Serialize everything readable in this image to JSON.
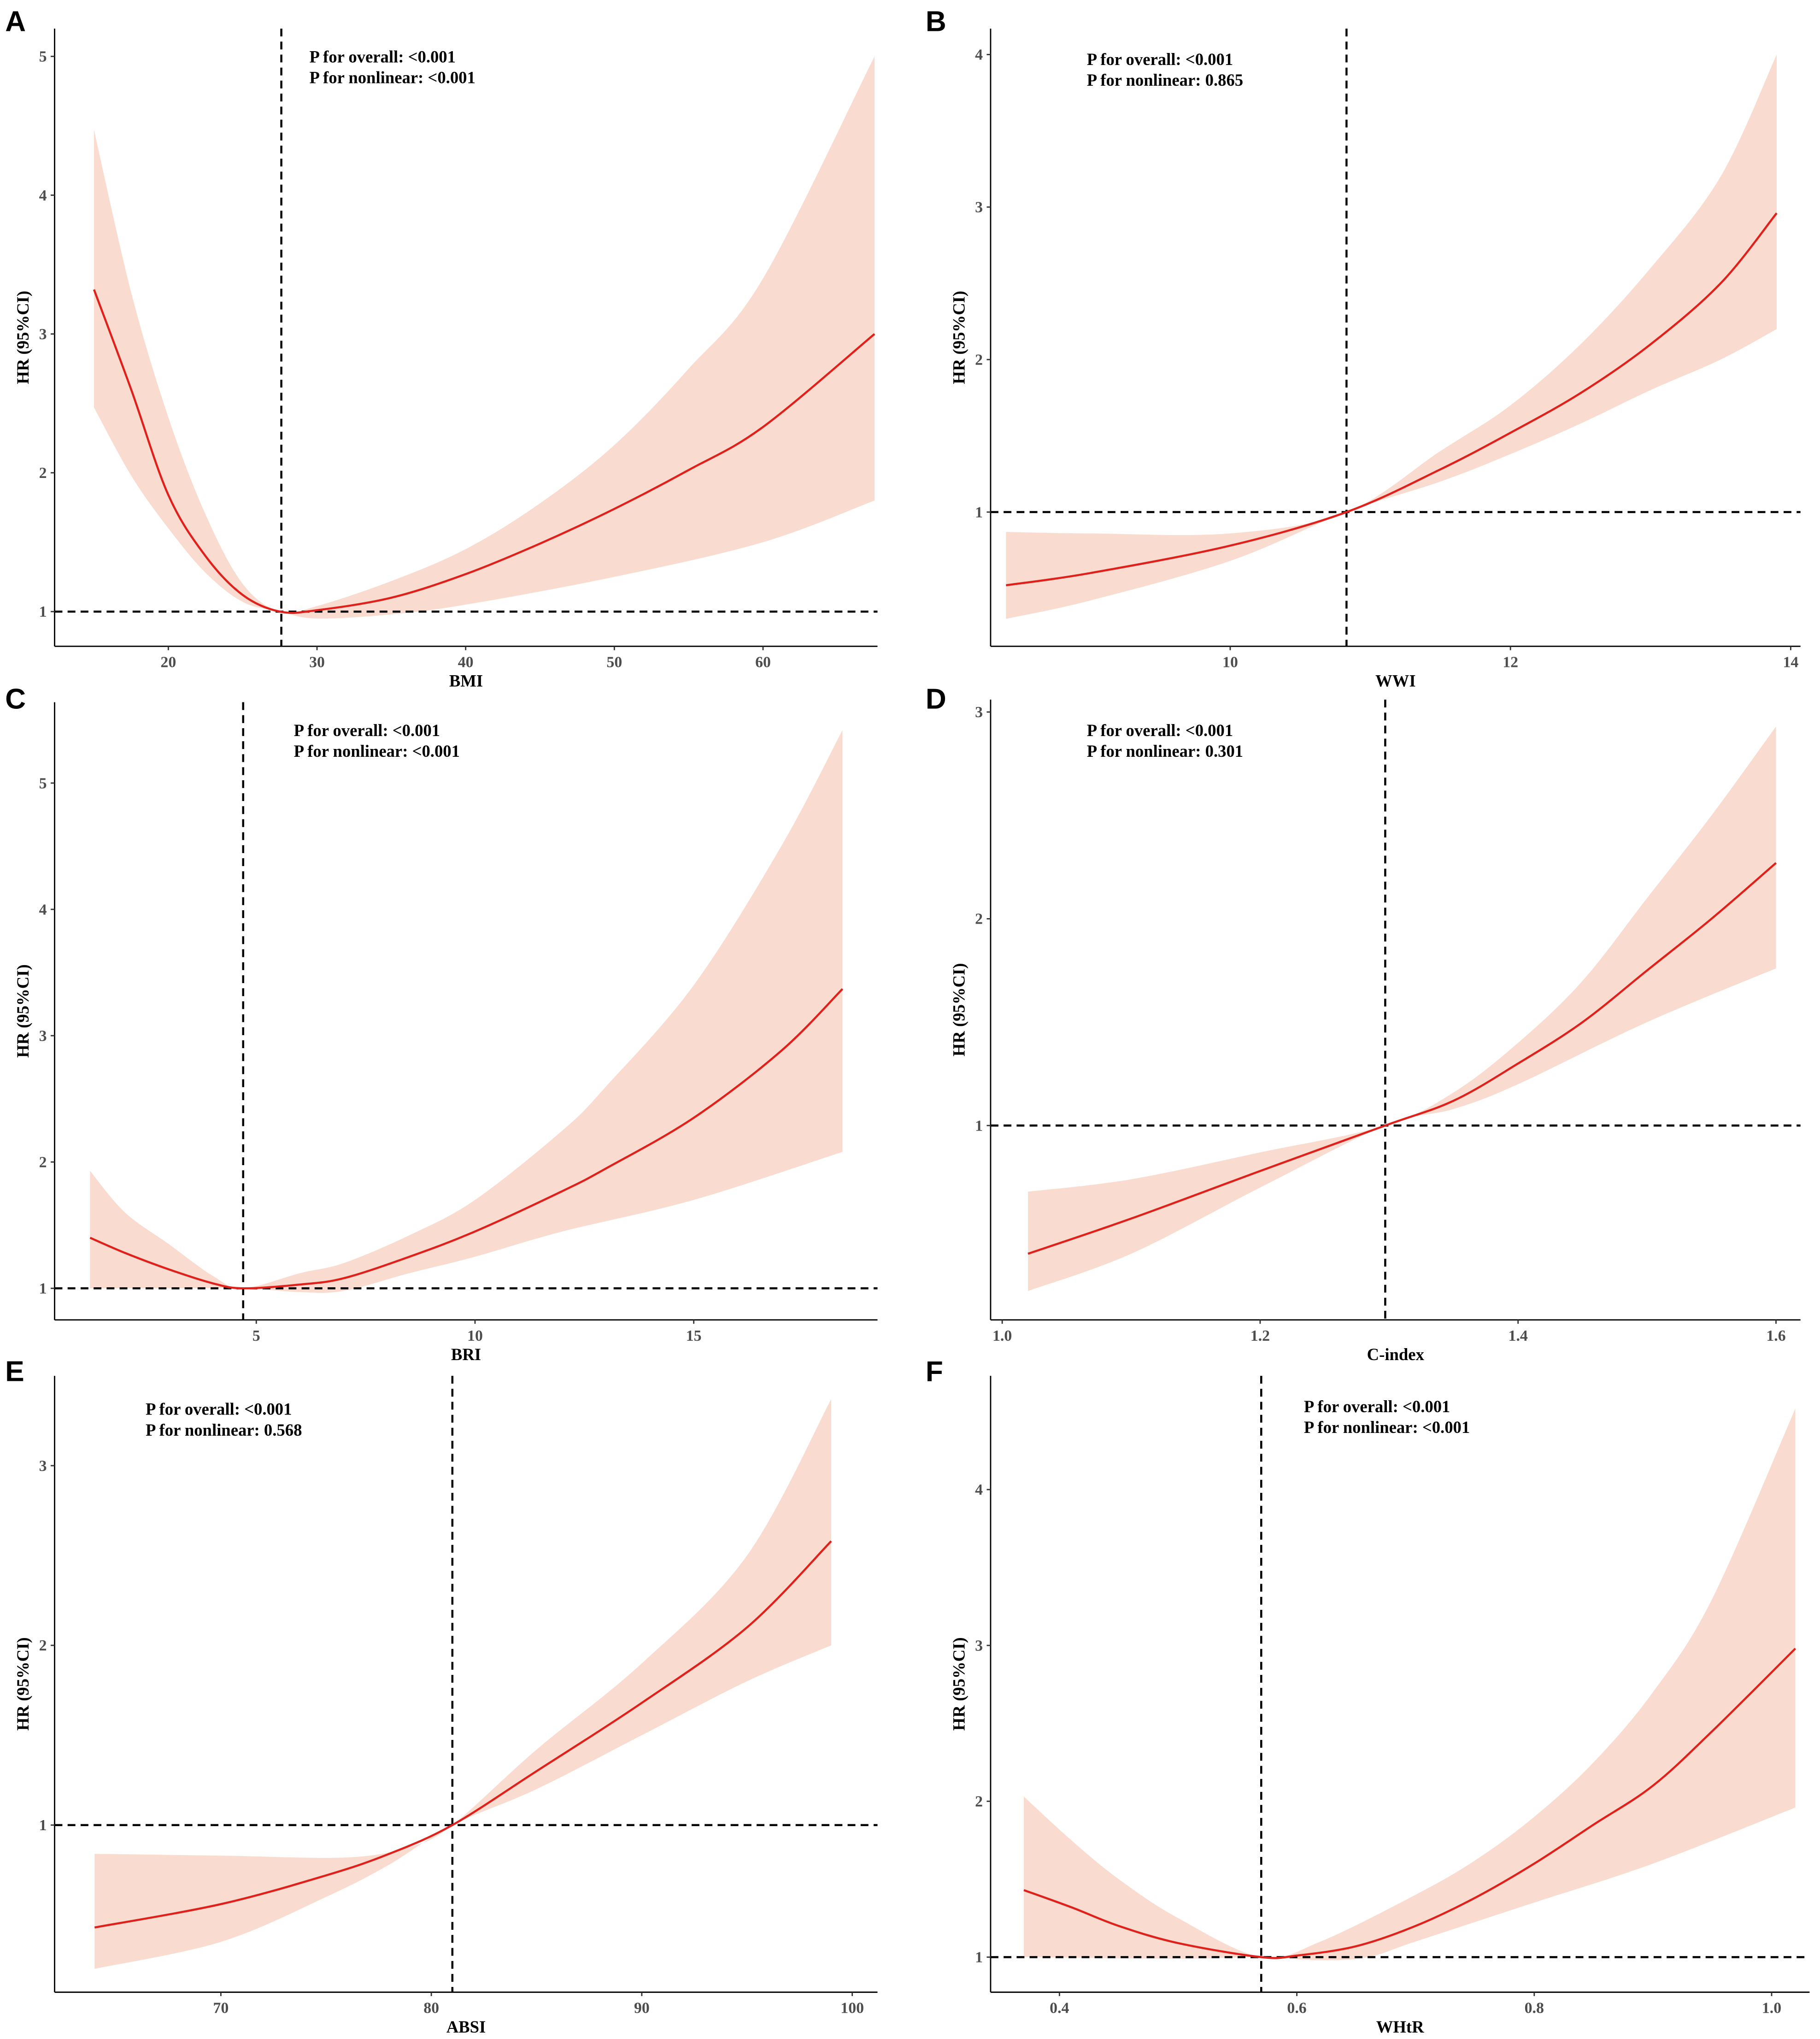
{
  "colors": {
    "curve": "#e0201b",
    "band": "#f9dccf",
    "ref": "#000000"
  },
  "chart_data": [
    {
      "panel": "A",
      "type": "line",
      "xlabel": "BMI",
      "ylabel": "HR (95%CI)",
      "xlim": [
        12.35,
        67.7
      ],
      "ylim": [
        0.75,
        5.2
      ],
      "xticks": [
        20,
        30,
        40,
        50,
        60
      ],
      "yticks": [
        1,
        2,
        3,
        4,
        5
      ],
      "ref_x": 27.6,
      "ref_y": 1,
      "annotation": [
        "P for overall: <0.001",
        "P for nonlinear: <0.001"
      ],
      "hr": [
        [
          15,
          3.32
        ],
        [
          17.5,
          2.6
        ],
        [
          20,
          1.84
        ],
        [
          22.5,
          1.4
        ],
        [
          25,
          1.12
        ],
        [
          27.5,
          1.0
        ],
        [
          30,
          1.01
        ],
        [
          35,
          1.1
        ],
        [
          40,
          1.27
        ],
        [
          45,
          1.49
        ],
        [
          50,
          1.74
        ],
        [
          55,
          2.02
        ],
        [
          60,
          2.33
        ],
        [
          67.5,
          3.0
        ]
      ],
      "lower": [
        [
          15,
          2.47
        ],
        [
          17.5,
          1.98
        ],
        [
          20,
          1.6
        ],
        [
          22.5,
          1.28
        ],
        [
          25,
          1.07
        ],
        [
          27.5,
          1.0
        ],
        [
          30,
          0.95
        ],
        [
          35,
          0.98
        ],
        [
          40,
          1.05
        ],
        [
          50,
          1.25
        ],
        [
          60,
          1.5
        ],
        [
          67.5,
          1.8
        ]
      ],
      "upper": [
        [
          15,
          4.47
        ],
        [
          17.5,
          3.3
        ],
        [
          20,
          2.4
        ],
        [
          22.5,
          1.7
        ],
        [
          25,
          1.2
        ],
        [
          27.5,
          1.0
        ],
        [
          30,
          1.04
        ],
        [
          35,
          1.22
        ],
        [
          40,
          1.45
        ],
        [
          45,
          1.78
        ],
        [
          50,
          2.2
        ],
        [
          55,
          2.75
        ],
        [
          60,
          3.4
        ],
        [
          67.5,
          5.0
        ]
      ]
    },
    {
      "panel": "B",
      "type": "line",
      "xlabel": "WWI",
      "ylabel": "HR (95%CI)",
      "xlim": [
        8.29,
        14.07
      ],
      "ylim": [
        0.12,
        4.17
      ],
      "xticks": [
        10,
        12,
        14
      ],
      "yticks": [
        1,
        2,
        3,
        4
      ],
      "ref_x": 10.83,
      "ref_y": 1,
      "annotation": [
        "P for overall: <0.001",
        "P for nonlinear: 0.865"
      ],
      "hr": [
        [
          8.4,
          0.52
        ],
        [
          9,
          0.6
        ],
        [
          10,
          0.78
        ],
        [
          10.83,
          1.0
        ],
        [
          11.5,
          1.28
        ],
        [
          12,
          1.52
        ],
        [
          12.5,
          1.78
        ],
        [
          13,
          2.1
        ],
        [
          13.5,
          2.5
        ],
        [
          13.9,
          2.96
        ]
      ],
      "lower": [
        [
          8.4,
          0.3
        ],
        [
          9,
          0.42
        ],
        [
          10,
          0.68
        ],
        [
          10.83,
          1.0
        ],
        [
          11.5,
          1.2
        ],
        [
          12,
          1.38
        ],
        [
          12.5,
          1.58
        ],
        [
          13,
          1.8
        ],
        [
          13.5,
          2.0
        ],
        [
          13.9,
          2.2
        ]
      ],
      "upper": [
        [
          8.4,
          0.87
        ],
        [
          9,
          0.86
        ],
        [
          10,
          0.86
        ],
        [
          10.83,
          1.0
        ],
        [
          11.5,
          1.4
        ],
        [
          12,
          1.7
        ],
        [
          12.5,
          2.1
        ],
        [
          13,
          2.6
        ],
        [
          13.5,
          3.2
        ],
        [
          13.9,
          4.0
        ]
      ]
    },
    {
      "panel": "C",
      "type": "line",
      "xlabel": "BRI",
      "ylabel": "HR (95%CI)",
      "xlim": [
        0.39,
        19.2
      ],
      "ylim": [
        0.75,
        5.64
      ],
      "xticks": [
        5,
        10,
        15
      ],
      "yticks": [
        1,
        2,
        3,
        4,
        5
      ],
      "ref_x": 4.7,
      "ref_y": 1,
      "annotation": [
        "P for overall: <0.001",
        "P for nonlinear: <0.001"
      ],
      "hr": [
        [
          1.2,
          1.4
        ],
        [
          2,
          1.28
        ],
        [
          3,
          1.15
        ],
        [
          4,
          1.04
        ],
        [
          4.7,
          1.0
        ],
        [
          6,
          1.03
        ],
        [
          7,
          1.08
        ],
        [
          8.5,
          1.25
        ],
        [
          10,
          1.45
        ],
        [
          12,
          1.77
        ],
        [
          13,
          1.95
        ],
        [
          15,
          2.35
        ],
        [
          17,
          2.88
        ],
        [
          18.4,
          3.37
        ]
      ],
      "lower": [
        [
          1.2,
          1.0
        ],
        [
          3,
          1.0
        ],
        [
          4.7,
          1.0
        ],
        [
          6,
          0.97
        ],
        [
          7,
          0.98
        ],
        [
          8.5,
          1.12
        ],
        [
          10,
          1.25
        ],
        [
          12,
          1.45
        ],
        [
          15,
          1.7
        ],
        [
          18.4,
          2.08
        ]
      ],
      "upper": [
        [
          1.2,
          1.93
        ],
        [
          2,
          1.6
        ],
        [
          3,
          1.35
        ],
        [
          4,
          1.1
        ],
        [
          4.7,
          1.0
        ],
        [
          6,
          1.12
        ],
        [
          7,
          1.2
        ],
        [
          8.5,
          1.42
        ],
        [
          10,
          1.7
        ],
        [
          12,
          2.25
        ],
        [
          13,
          2.6
        ],
        [
          15,
          3.4
        ],
        [
          17,
          4.5
        ],
        [
          18.4,
          5.42
        ]
      ]
    },
    {
      "panel": "D",
      "type": "line",
      "xlabel": "C-index",
      "ylabel": "HR (95%CI)",
      "xlim": [
        0.991,
        1.619
      ],
      "ylim": [
        0.06,
        3.06
      ],
      "xticks": [
        1.0,
        1.2,
        1.4,
        1.6
      ],
      "yticks": [
        1,
        2,
        3
      ],
      "ref_x": 1.297,
      "ref_y": 1,
      "annotation": [
        "P for overall: <0.001",
        "P for nonlinear: 0.301"
      ],
      "hr": [
        [
          1.02,
          0.38
        ],
        [
          1.1,
          0.55
        ],
        [
          1.2,
          0.78
        ],
        [
          1.297,
          1.0
        ],
        [
          1.35,
          1.12
        ],
        [
          1.4,
          1.3
        ],
        [
          1.45,
          1.5
        ],
        [
          1.5,
          1.75
        ],
        [
          1.55,
          2.0
        ],
        [
          1.6,
          2.27
        ]
      ],
      "lower": [
        [
          1.02,
          0.2
        ],
        [
          1.1,
          0.38
        ],
        [
          1.2,
          0.7
        ],
        [
          1.297,
          1.0
        ],
        [
          1.35,
          1.08
        ],
        [
          1.4,
          1.2
        ],
        [
          1.5,
          1.5
        ],
        [
          1.6,
          1.76
        ]
      ],
      "upper": [
        [
          1.02,
          0.68
        ],
        [
          1.1,
          0.74
        ],
        [
          1.2,
          0.87
        ],
        [
          1.297,
          1.0
        ],
        [
          1.35,
          1.16
        ],
        [
          1.4,
          1.4
        ],
        [
          1.45,
          1.7
        ],
        [
          1.5,
          2.1
        ],
        [
          1.55,
          2.5
        ],
        [
          1.6,
          2.93
        ]
      ]
    },
    {
      "panel": "E",
      "type": "line",
      "xlabel": "ABSI",
      "ylabel": "HR (95%CI)",
      "xlim": [
        62.1,
        101.2
      ],
      "ylim": [
        0.07,
        3.5
      ],
      "xticks": [
        70,
        80,
        90,
        100
      ],
      "yticks": [
        1,
        2,
        3
      ],
      "ref_x": 81,
      "ref_y": 1,
      "annotation": [
        "P for overall: <0.001",
        "P for nonlinear: 0.568"
      ],
      "hr": [
        [
          64,
          0.43
        ],
        [
          70,
          0.56
        ],
        [
          75,
          0.72
        ],
        [
          78,
          0.84
        ],
        [
          81,
          1.0
        ],
        [
          85,
          1.3
        ],
        [
          90,
          1.68
        ],
        [
          95,
          2.1
        ],
        [
          99,
          2.58
        ]
      ],
      "lower": [
        [
          64,
          0.2
        ],
        [
          70,
          0.35
        ],
        [
          75,
          0.6
        ],
        [
          78,
          0.78
        ],
        [
          81,
          1.0
        ],
        [
          85,
          1.2
        ],
        [
          90,
          1.5
        ],
        [
          95,
          1.8
        ],
        [
          99,
          2.0
        ]
      ],
      "upper": [
        [
          64,
          0.84
        ],
        [
          70,
          0.83
        ],
        [
          76,
          0.82
        ],
        [
          79,
          0.88
        ],
        [
          81,
          1.0
        ],
        [
          85,
          1.42
        ],
        [
          90,
          1.9
        ],
        [
          95,
          2.5
        ],
        [
          99,
          3.37
        ]
      ]
    },
    {
      "panel": "F",
      "type": "line",
      "xlabel": "WHtR",
      "ylabel": "HR (95%CI)",
      "xlim": [
        0.342,
        1.032
      ],
      "ylim": [
        0.775,
        4.73
      ],
      "xticks": [
        0.4,
        0.6,
        0.8,
        1.0
      ],
      "yticks": [
        1,
        2,
        3,
        4
      ],
      "ref_x": 0.57,
      "ref_y": 1,
      "annotation": [
        "P for overall: <0.001",
        "P for nonlinear: <0.001"
      ],
      "hr": [
        [
          0.37,
          1.43
        ],
        [
          0.41,
          1.32
        ],
        [
          0.45,
          1.2
        ],
        [
          0.5,
          1.09
        ],
        [
          0.57,
          1.0
        ],
        [
          0.6,
          1.01
        ],
        [
          0.65,
          1.07
        ],
        [
          0.7,
          1.2
        ],
        [
          0.75,
          1.38
        ],
        [
          0.8,
          1.6
        ],
        [
          0.85,
          1.85
        ],
        [
          0.9,
          2.1
        ],
        [
          0.95,
          2.45
        ],
        [
          1.02,
          2.98
        ]
      ],
      "lower": [
        [
          0.37,
          1.0
        ],
        [
          0.5,
          0.99
        ],
        [
          0.57,
          1.0
        ],
        [
          0.62,
          0.98
        ],
        [
          0.66,
          1.0
        ],
        [
          0.7,
          1.1
        ],
        [
          0.8,
          1.35
        ],
        [
          0.9,
          1.6
        ],
        [
          1.02,
          1.96
        ]
      ],
      "upper": [
        [
          0.37,
          2.03
        ],
        [
          0.41,
          1.75
        ],
        [
          0.45,
          1.5
        ],
        [
          0.5,
          1.25
        ],
        [
          0.57,
          1.0
        ],
        [
          0.62,
          1.1
        ],
        [
          0.7,
          1.4
        ],
        [
          0.75,
          1.62
        ],
        [
          0.8,
          1.9
        ],
        [
          0.85,
          2.25
        ],
        [
          0.9,
          2.7
        ],
        [
          0.95,
          3.3
        ],
        [
          1.02,
          4.52
        ]
      ]
    }
  ]
}
